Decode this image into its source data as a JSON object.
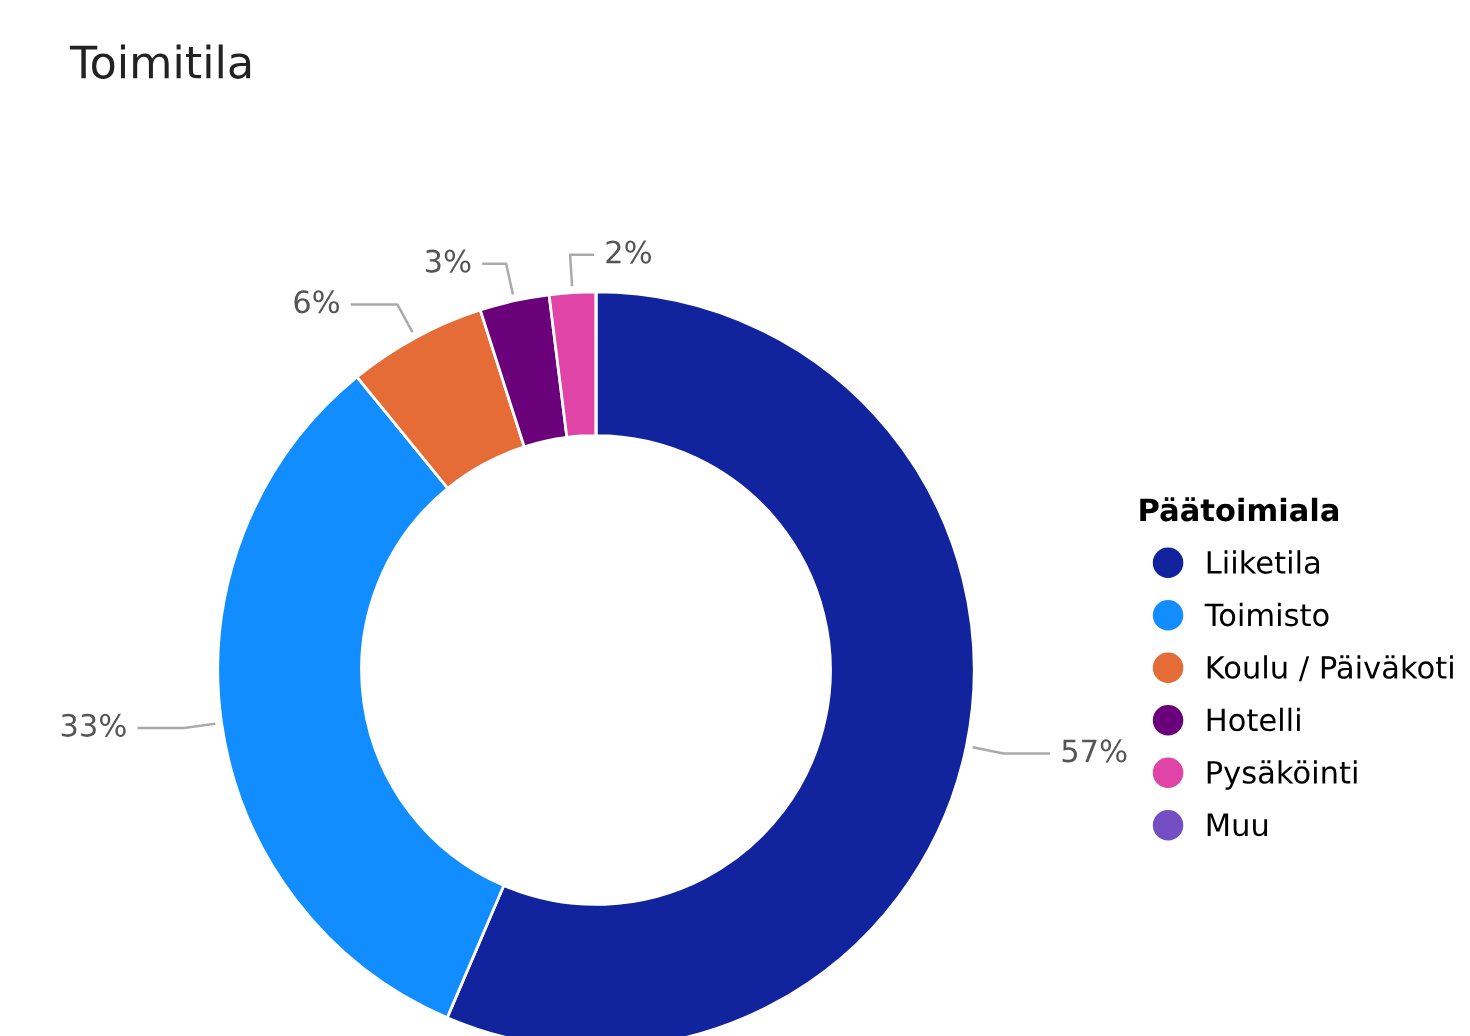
{
  "chart_data": {
    "type": "donut",
    "title": "Toimitila",
    "legend_title": "Päätoimiala",
    "categories": [
      "Liiketila",
      "Toimisto",
      "Koulu / Päiväkoti",
      "Hotelli",
      "Pysäköinti",
      "Muu"
    ],
    "values": [
      57,
      33,
      6,
      3,
      2,
      0
    ],
    "colors": [
      "#12239e",
      "#118dff",
      "#e66c37",
      "#6b007b",
      "#e044a7",
      "#744ec2"
    ],
    "value_labels": [
      "57%",
      "33%",
      "6%",
      "3%",
      "2%",
      null
    ],
    "legend": "right"
  }
}
